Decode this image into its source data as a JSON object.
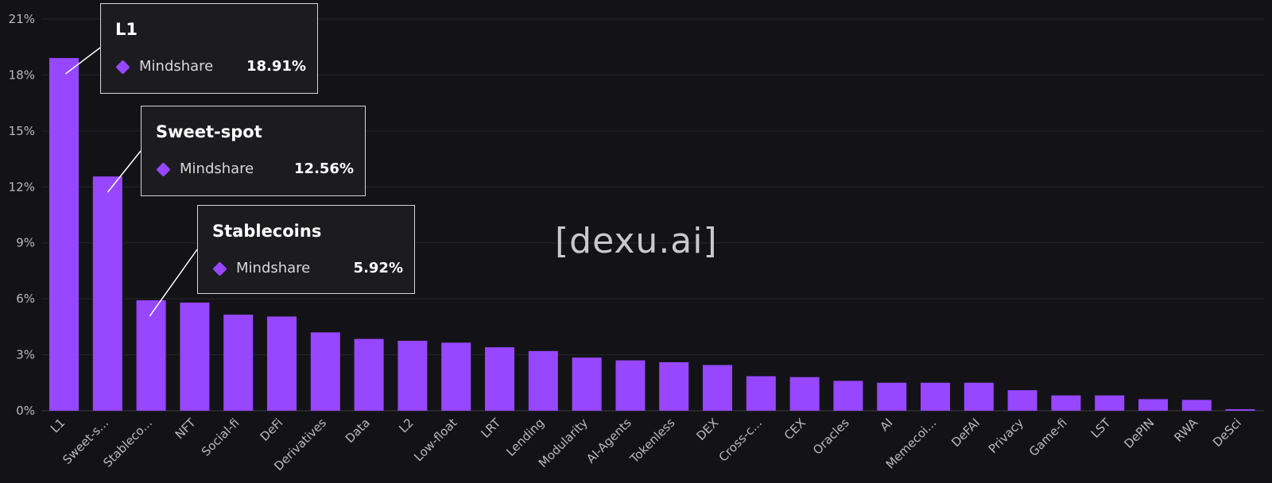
{
  "chart_data": {
    "type": "bar",
    "categories": [
      "L1",
      "Sweet-s...",
      "Stableco...",
      "NFT",
      "Social-fi",
      "DeFi",
      "Derivatives",
      "Data",
      "L2",
      "Low-float",
      "LRT",
      "Lending",
      "Modularity",
      "AI-Agents",
      "Tokenless",
      "DEX",
      "Cross-c...",
      "CEX",
      "Oracles",
      "AI",
      "Memecoi...",
      "DeFAI",
      "Privacy",
      "Game-fi",
      "LST",
      "DePIN",
      "RWA",
      "DeSci"
    ],
    "series": [
      {
        "name": "Mindshare",
        "values": [
          18.91,
          12.56,
          5.92,
          5.8,
          5.15,
          5.05,
          4.2,
          3.85,
          3.75,
          3.65,
          3.4,
          3.2,
          2.85,
          2.7,
          2.6,
          2.45,
          1.85,
          1.8,
          1.6,
          1.5,
          1.5,
          1.5,
          1.1,
          0.82,
          0.82,
          0.62,
          0.58,
          0.08
        ]
      }
    ],
    "ylim": [
      0,
      21
    ],
    "yticks": [
      0,
      3,
      6,
      9,
      12,
      15,
      18,
      21
    ],
    "ytick_labels": [
      "0%",
      "3%",
      "6%",
      "9%",
      "12%",
      "15%",
      "18%",
      "21%"
    ],
    "grid": true,
    "bar_color": "#9747ff",
    "background": "#131317"
  },
  "tooltips": [
    {
      "title": "L1",
      "metric": "Mindshare",
      "value": "18.91%"
    },
    {
      "title": "Sweet-spot",
      "metric": "Mindshare",
      "value": "12.56%"
    },
    {
      "title": "Stablecoins",
      "metric": "Mindshare",
      "value": "5.92%"
    }
  ],
  "watermark": "[dexu.ai]"
}
